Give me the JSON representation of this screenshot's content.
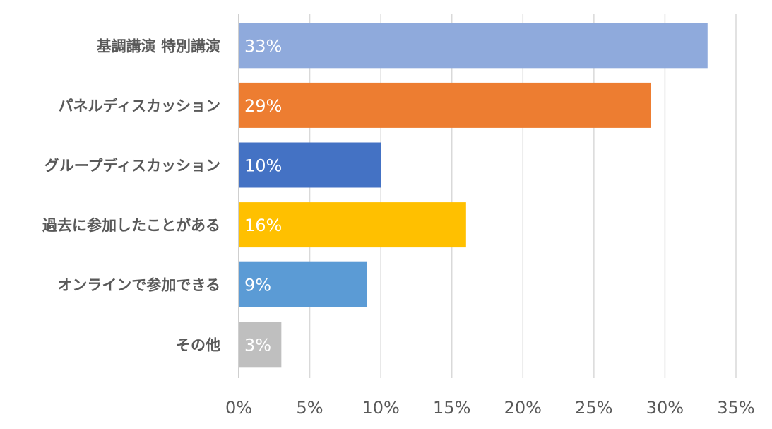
{
  "chart_data": {
    "type": "bar",
    "orientation": "horizontal",
    "categories": [
      "基調講演 特別講演",
      "パネルディスカッション",
      "グループディスカッション",
      "過去に参加したことがある",
      "オンラインで参加できる",
      "その他"
    ],
    "values": [
      33,
      29,
      10,
      16,
      9,
      3
    ],
    "data_labels": [
      "33%",
      "29%",
      "10%",
      "16%",
      "9%",
      "3%"
    ],
    "colors": [
      "#8faadc",
      "#ed7d31",
      "#4472c4",
      "#ffc000",
      "#5b9bd5",
      "#bfbfbf"
    ],
    "xlim": [
      0,
      35
    ],
    "x_ticks": [
      0,
      5,
      10,
      15,
      20,
      25,
      30,
      35
    ],
    "x_tick_labels": [
      "0%",
      "5%",
      "10%",
      "15%",
      "20%",
      "25%",
      "30%",
      "35%"
    ],
    "grid": true,
    "legend": "none"
  }
}
